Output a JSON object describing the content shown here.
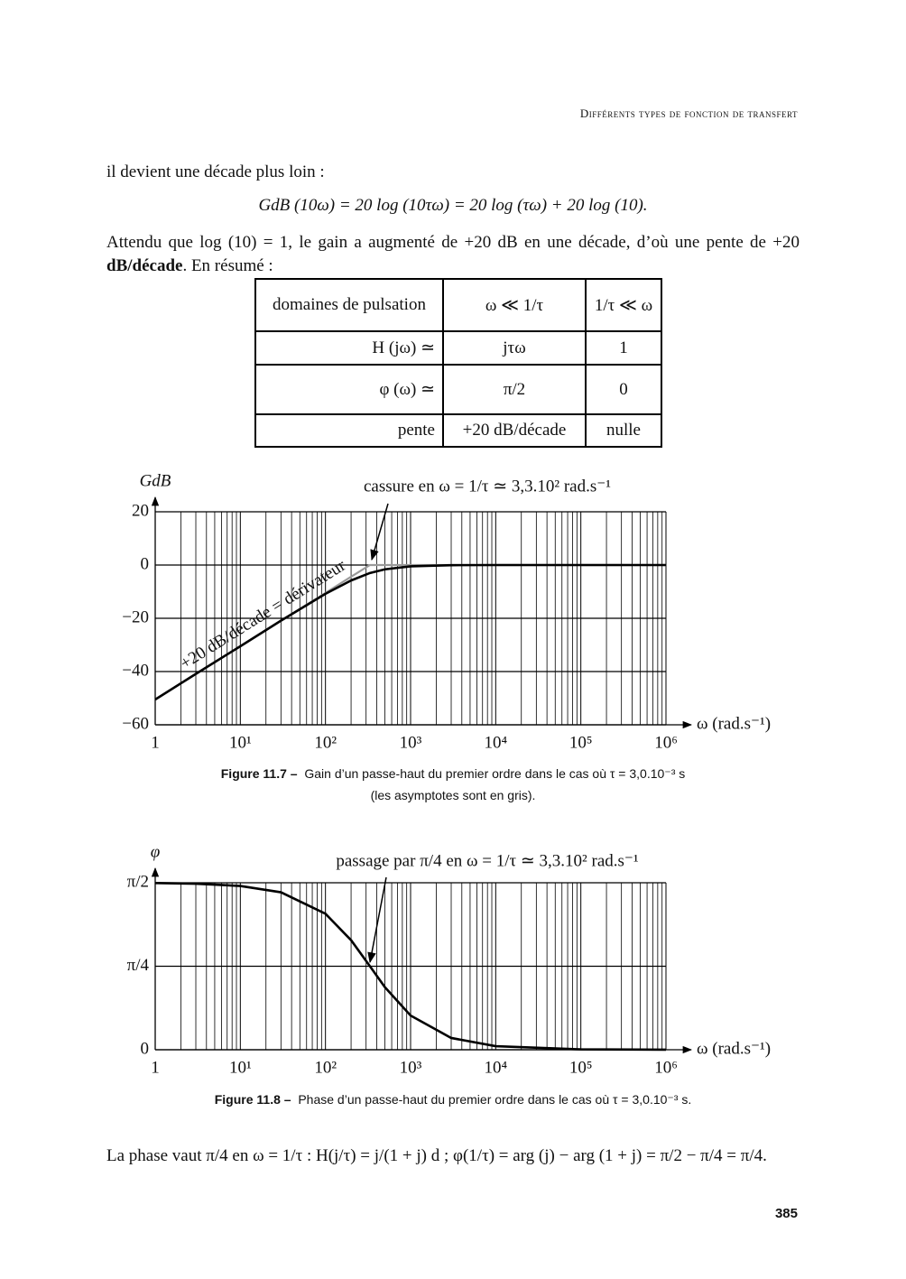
{
  "header": {
    "running_title": "Différents types de fonction de transfert"
  },
  "text": {
    "intro": "il devient une décade plus loin :",
    "equation": "GdB (10ω) = 20 log (10τω) = 20 log (τω) + 20 log (10).",
    "paragraph": [
      "Attendu que log (10) = 1, le gain a augmenté de +20 dB en une décade, d’où une pente de +20 ",
      "dB/décade",
      ". En résumé :"
    ]
  },
  "table": {
    "rows": [
      [
        "domaines de pulsation",
        "ω ≪ 1/τ",
        "1/τ ≪ ω"
      ],
      [
        "H (jω) ≃",
        "jτω",
        "1"
      ],
      [
        "φ (ω) ≃",
        "π/2",
        "0"
      ],
      [
        "pente",
        "+20 dB/décade",
        "nulle"
      ]
    ]
  },
  "chart_data": [
    {
      "type": "line",
      "log_x": true,
      "grid": true,
      "minor_grid": true,
      "ylabel": "GdB",
      "xlabel": "ω (rad.s⁻¹)",
      "annotations": [
        "cassure en ω = 1/τ ≃ 3,3.10² rad.s⁻¹",
        "+20 dB/décade = dérivateur"
      ],
      "x": [
        1,
        3,
        10,
        30,
        100,
        200,
        333,
        500,
        1000,
        3000,
        10000,
        100000,
        1000000
      ],
      "xlim": [
        1,
        1000000
      ],
      "xticks": [
        1,
        {
          "value": 10,
          "label": "10¹"
        },
        {
          "value": 100,
          "label": "10²"
        },
        {
          "value": 1000,
          "label": "10³"
        },
        {
          "value": 10000,
          "label": "10⁴"
        },
        {
          "value": 100000,
          "label": "10⁵"
        },
        {
          "value": 1000000,
          "label": "10⁶"
        }
      ],
      "ylim": [
        -60,
        20
      ],
      "yticks": [
        20,
        0,
        {
          "value": -20,
          "label": "−20"
        },
        {
          "value": -40,
          "label": "−40"
        },
        {
          "value": -60,
          "label": "−60"
        }
      ],
      "series": [
        {
          "color": "#9a9a9a",
          "values": [
            -50.5,
            -40.9,
            -30.5,
            -20.9,
            -10.5,
            -4.4,
            0,
            0,
            0,
            0,
            0,
            0,
            0
          ]
        },
        {
          "color": "#000000",
          "values": [
            -50.5,
            -40.9,
            -30.5,
            -20.9,
            -10.8,
            -5.8,
            -3.0,
            -1.6,
            -0.5,
            -0.05,
            0,
            0,
            0
          ]
        }
      ]
    },
    {
      "type": "line",
      "log_x": true,
      "grid": true,
      "minor_grid": true,
      "ylabel": "φ",
      "xlabel": "ω (rad.s⁻¹)",
      "annotations": [
        "passage par π/4 en ω = 1/τ ≃ 3,3.10² rad.s⁻¹"
      ],
      "x": [
        1,
        3,
        10,
        30,
        100,
        200,
        333,
        500,
        1000,
        3000,
        10000,
        100000,
        1000000
      ],
      "xlim": [
        1,
        1000000
      ],
      "xticks": [
        1,
        {
          "value": 10,
          "label": "10¹"
        },
        {
          "value": 100,
          "label": "10²"
        },
        {
          "value": 1000,
          "label": "10³"
        },
        {
          "value": 10000,
          "label": "10⁴"
        },
        {
          "value": 100000,
          "label": "10⁵"
        },
        {
          "value": 1000000,
          "label": "10⁶"
        }
      ],
      "ylim": [
        0,
        1.5708
      ],
      "yticks": [
        {
          "value": 1.5708,
          "label": "π/2"
        },
        {
          "value": 0.7854,
          "label": "π/4"
        },
        0
      ],
      "series": [
        {
          "color": "#000000",
          "values": [
            1.5678,
            1.5618,
            1.5408,
            1.4814,
            1.2793,
            1.0304,
            0.7854,
            0.588,
            0.3218,
            0.1107,
            0.0333,
            0.0033,
            0.0003
          ]
        }
      ]
    }
  ],
  "captions": [
    {
      "label": "Figure 11.7 –",
      "text": [
        "Gain d’un passe-haut du premier ordre dans le cas où τ = 3,0.10⁻³ s",
        "(les asymptotes sont en gris)."
      ]
    },
    {
      "label": "Figure 11.8 –",
      "text": [
        "Phase d’un passe-haut du premier ordre dans le cas où τ = 3,0.10⁻³ s."
      ]
    }
  ],
  "conclusion": "La phase vaut π/4 en ω = 1/τ : H(j/τ) = j/(1 + j) d ; φ(1/τ) = arg (j) − arg (1 + j) = π/2 − π/4 = π/4.",
  "page_number": "385"
}
